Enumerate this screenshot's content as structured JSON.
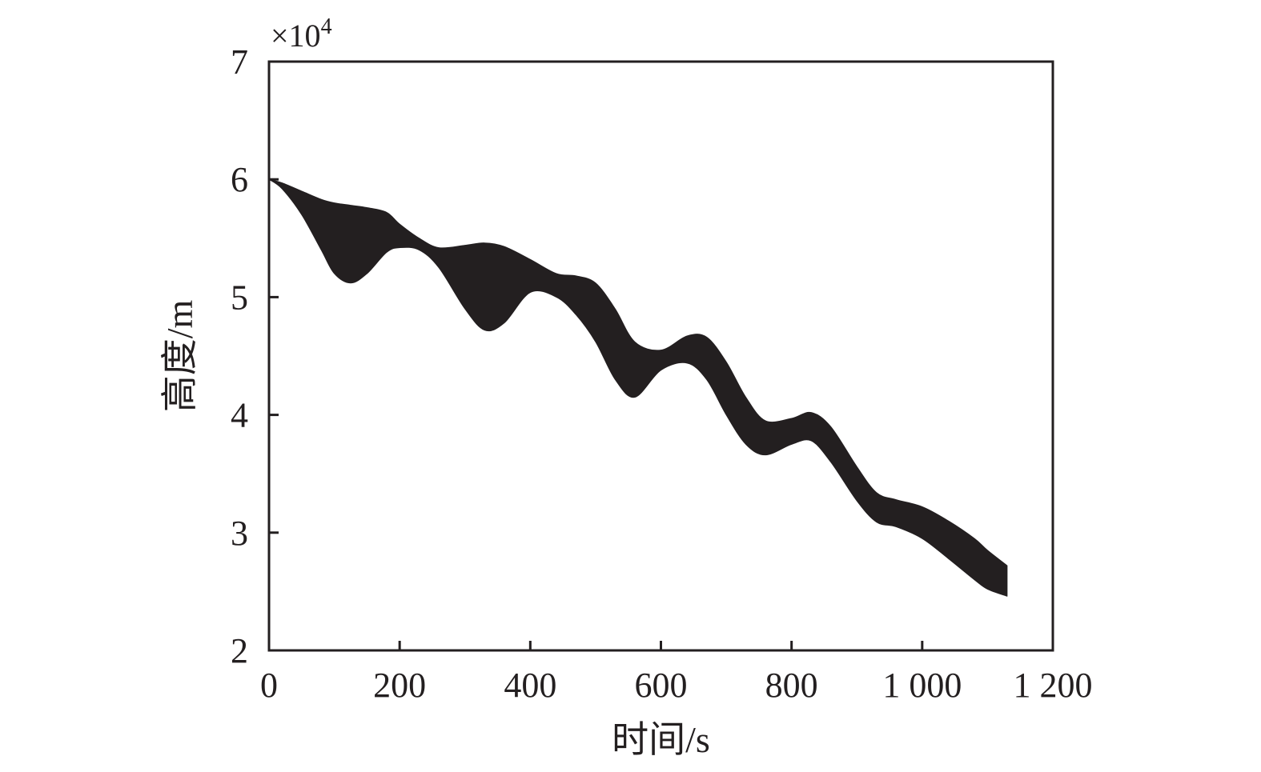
{
  "chart_data": {
    "type": "area",
    "xlabel": "时间/s",
    "ylabel": "高度/m",
    "y_multiplier": "×10",
    "y_multiplier_exponent": "4",
    "xlim": [
      0,
      1200
    ],
    "ylim": [
      2,
      7
    ],
    "x_ticks": [
      0,
      200,
      400,
      600,
      800,
      1000,
      1200
    ],
    "x_tick_labels": [
      "0",
      "200",
      "400",
      "600",
      "800",
      "1 000",
      "1 200"
    ],
    "y_ticks": [
      2,
      3,
      4,
      5,
      6,
      7
    ],
    "y_tick_labels": [
      "2",
      "3",
      "4",
      "5",
      "6",
      "7"
    ],
    "grid": false,
    "fill_color": "#231f20",
    "series": [
      {
        "x": [
          0,
          20,
          50,
          80,
          100,
          125,
          150,
          180,
          200,
          230,
          260,
          300,
          330,
          360,
          400,
          440,
          470,
          500,
          530,
          560,
          600,
          640,
          670,
          700,
          730,
          760,
          800,
          830,
          860,
          900,
          930,
          960,
          1000,
          1040,
          1080,
          1100,
          1130
        ],
        "upper": [
          6.0,
          5.97,
          5.9,
          5.83,
          5.8,
          5.78,
          5.76,
          5.72,
          5.62,
          5.5,
          5.42,
          5.44,
          5.46,
          5.43,
          5.32,
          5.2,
          5.18,
          5.12,
          4.9,
          4.62,
          4.55,
          4.67,
          4.66,
          4.45,
          4.15,
          3.95,
          3.97,
          4.02,
          3.9,
          3.56,
          3.34,
          3.28,
          3.22,
          3.1,
          2.95,
          2.85,
          2.72
        ],
        "lower": [
          6.0,
          5.92,
          5.7,
          5.4,
          5.2,
          5.12,
          5.2,
          5.38,
          5.42,
          5.4,
          5.25,
          4.9,
          4.72,
          4.78,
          5.04,
          5.0,
          4.85,
          4.62,
          4.3,
          4.15,
          4.38,
          4.44,
          4.3,
          4.0,
          3.75,
          3.66,
          3.75,
          3.78,
          3.6,
          3.27,
          3.09,
          3.05,
          2.95,
          2.78,
          2.6,
          2.52,
          2.46
        ]
      }
    ]
  }
}
